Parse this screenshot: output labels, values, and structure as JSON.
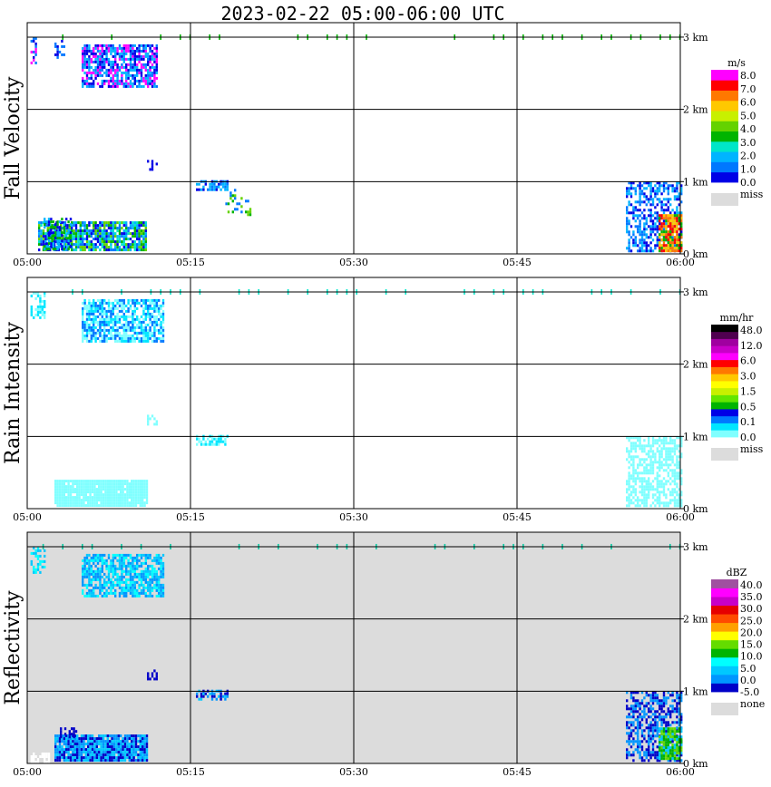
{
  "title": "2023-02-22  05:00-06:00 UTC",
  "chart_data": [
    {
      "type": "heatmap",
      "title": "Fall Velocity",
      "x_ticks": [
        "05:00",
        "05:15",
        "05:30",
        "05:45",
        "06:00"
      ],
      "y_ticks": [
        "0 km",
        "1 km",
        "2 km",
        "3 km"
      ],
      "xlim_min": [
        0,
        60
      ],
      "ylim_km": [
        0,
        3.2
      ],
      "background": "#ffffff",
      "colorbar": {
        "unit": "m/s",
        "colors": [
          "#0000e6",
          "#0078ff",
          "#00b4ff",
          "#00e6c8",
          "#00b400",
          "#64d200",
          "#c8f000",
          "#ffc800",
          "#ff7800",
          "#ff0000",
          "#ff00ff"
        ],
        "labels": [
          "8.0",
          "7.0",
          "6.0",
          "5.0",
          "4.0",
          "3.0",
          "2.0",
          "1.0",
          "0.0"
        ],
        "miss_label": "miss"
      },
      "echo_regions": [
        {
          "t": [
            0.3,
            0.8
          ],
          "h": [
            2.65,
            3.0
          ],
          "colors": [
            "#0000e6",
            "#0078ff",
            "#ff00ff"
          ],
          "density": 0.55
        },
        {
          "t": [
            2.5,
            3.5
          ],
          "h": [
            2.7,
            3.0
          ],
          "colors": [
            "#0000e6",
            "#0078ff"
          ],
          "density": 0.3
        },
        {
          "t": [
            5.0,
            12.0
          ],
          "h": [
            2.3,
            2.9
          ],
          "colors": [
            "#0000e6",
            "#0078ff",
            "#00b4ff",
            "#ff00ff"
          ],
          "density": 0.75
        },
        {
          "t": [
            1.0,
            11.0
          ],
          "h": [
            0.05,
            0.45
          ],
          "colors": [
            "#0000e6",
            "#0078ff",
            "#00b4ff",
            "#00e6c8",
            "#00b400",
            "#64d200"
          ],
          "density": 0.85
        },
        {
          "t": [
            1.5,
            4.0
          ],
          "h": [
            0.05,
            0.5
          ],
          "colors": [
            "#0000e6",
            "#00b4ff",
            "#00b400"
          ],
          "density": 0.6
        },
        {
          "t": [
            15.5,
            18.5
          ],
          "h": [
            0.9,
            1.02
          ],
          "colors": [
            "#0000e6",
            "#0078ff",
            "#00b4ff"
          ],
          "density": 0.7
        },
        {
          "t": [
            18.0,
            20.5
          ],
          "h": [
            0.55,
            0.9
          ],
          "colors": [
            "#00b400",
            "#64d200",
            "#0078ff"
          ],
          "density": 0.25
        },
        {
          "t": [
            55.0,
            60.0
          ],
          "h": [
            0.05,
            1.0
          ],
          "colors": [
            "#0000e6",
            "#0078ff",
            "#00b4ff"
          ],
          "density": 0.55
        },
        {
          "t": [
            58.0,
            60.0
          ],
          "h": [
            0.05,
            0.55
          ],
          "colors": [
            "#ffc800",
            "#ff7800",
            "#ff0000",
            "#00b400"
          ],
          "density": 0.9
        },
        {
          "t": [
            11.0,
            12.0
          ],
          "h": [
            1.15,
            1.3
          ],
          "colors": [
            "#0000e6"
          ],
          "density": 0.5
        }
      ]
    },
    {
      "type": "heatmap",
      "title": "Rain Intensity",
      "x_ticks": [
        "05:00",
        "05:15",
        "05:30",
        "05:45",
        "06:00"
      ],
      "y_ticks": [
        "0 km",
        "1 km",
        "2 km",
        "3 km"
      ],
      "xlim_min": [
        0,
        60
      ],
      "ylim_km": [
        0,
        3.2
      ],
      "background": "#ffffff",
      "colorbar": {
        "unit": "mm/hr",
        "colors": [
          "#80ffff",
          "#00e6ff",
          "#0078ff",
          "#0000e6",
          "#00b400",
          "#64e600",
          "#c8f000",
          "#ffff00",
          "#ffc800",
          "#ff7800",
          "#ff0000",
          "#ff00ff",
          "#c800c8",
          "#a000a0",
          "#500050",
          "#000000"
        ],
        "labels": [
          "48.0",
          "12.0",
          "6.0",
          "3.0",
          "1.5",
          "0.5",
          "0.1",
          "0.0"
        ],
        "miss_label": "miss"
      },
      "echo_regions": [
        {
          "t": [
            0.3,
            1.5
          ],
          "h": [
            2.65,
            3.0
          ],
          "colors": [
            "#00e6ff",
            "#80ffff"
          ],
          "density": 0.5
        },
        {
          "t": [
            5.0,
            12.5
          ],
          "h": [
            2.3,
            2.9
          ],
          "colors": [
            "#0078ff",
            "#00e6ff",
            "#80ffff"
          ],
          "density": 0.75
        },
        {
          "t": [
            2.5,
            11.0
          ],
          "h": [
            0.05,
            0.4
          ],
          "colors": [
            "#80ffff"
          ],
          "density": 0.95
        },
        {
          "t": [
            15.5,
            18.5
          ],
          "h": [
            0.9,
            1.02
          ],
          "colors": [
            "#80ffff",
            "#00e6ff"
          ],
          "density": 0.6
        },
        {
          "t": [
            55.0,
            60.0
          ],
          "h": [
            0.05,
            1.0
          ],
          "colors": [
            "#80ffff"
          ],
          "density": 0.6
        },
        {
          "t": [
            11.0,
            12.0
          ],
          "h": [
            1.15,
            1.3
          ],
          "colors": [
            "#80ffff"
          ],
          "density": 0.5
        }
      ]
    },
    {
      "type": "heatmap",
      "title": "Reflectivity",
      "x_ticks": [
        "05:00",
        "05:15",
        "05:30",
        "05:45",
        "06:00"
      ],
      "y_ticks": [
        "0 km",
        "1 km",
        "2 km",
        "3 km"
      ],
      "xlim_min": [
        0,
        60
      ],
      "ylim_km": [
        0,
        3.2
      ],
      "background": "#dcdcdc",
      "colorbar": {
        "unit": "dBZ",
        "colors": [
          "#0000c8",
          "#0096ff",
          "#00c8ff",
          "#00ffff",
          "#00b400",
          "#64dc00",
          "#ffff00",
          "#ffa000",
          "#ff4b00",
          "#e60000",
          "#c800c8",
          "#ff00ff",
          "#a050a0"
        ],
        "labels": [
          "40.0",
          "35.0",
          "30.0",
          "25.0",
          "20.0",
          "15.0",
          "10.0",
          "5.0",
          "0.0",
          "-5.0"
        ],
        "miss_label": "none"
      },
      "echo_regions": [
        {
          "t": [
            0.3,
            1.5
          ],
          "h": [
            2.65,
            3.0
          ],
          "colors": [
            "#00c8ff",
            "#00ffff"
          ],
          "density": 0.5
        },
        {
          "t": [
            5.0,
            12.5
          ],
          "h": [
            2.3,
            2.9
          ],
          "colors": [
            "#00c8ff",
            "#00ffff",
            "#0096ff"
          ],
          "density": 0.75
        },
        {
          "t": [
            2.5,
            11.0
          ],
          "h": [
            0.05,
            0.4
          ],
          "colors": [
            "#0000c8",
            "#0096ff",
            "#00c8ff"
          ],
          "density": 0.95
        },
        {
          "t": [
            3.0,
            4.5
          ],
          "h": [
            0.35,
            0.5
          ],
          "colors": [
            "#0000c8"
          ],
          "density": 0.6
        },
        {
          "t": [
            15.5,
            18.5
          ],
          "h": [
            0.9,
            1.02
          ],
          "colors": [
            "#0000c8",
            "#0096ff",
            "#00c8ff"
          ],
          "density": 0.6
        },
        {
          "t": [
            55.0,
            60.0
          ],
          "h": [
            0.05,
            1.0
          ],
          "colors": [
            "#0000c8",
            "#0096ff"
          ],
          "density": 0.55
        },
        {
          "t": [
            58.0,
            60.0
          ],
          "h": [
            0.05,
            0.5
          ],
          "colors": [
            "#00b400",
            "#64dc00",
            "#00c8ff"
          ],
          "density": 0.9
        },
        {
          "t": [
            11.0,
            12.0
          ],
          "h": [
            1.15,
            1.3
          ],
          "colors": [
            "#0000c8"
          ],
          "density": 0.5
        },
        {
          "t": [
            0.3,
            2.0
          ],
          "h": [
            0.0,
            0.15
          ],
          "colors": [
            "#ffffff"
          ],
          "density": 0.6
        }
      ]
    }
  ]
}
